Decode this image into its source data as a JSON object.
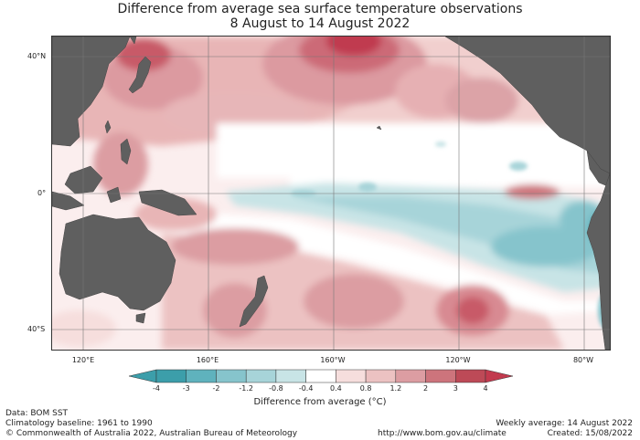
{
  "title": {
    "line1": "Difference from average sea surface temperature observations",
    "line2": "8 August to 14 August 2022"
  },
  "map": {
    "lat_labels": [
      "40°N",
      "0°",
      "40°S"
    ],
    "lon_labels": [
      "120°E",
      "160°E",
      "160°W",
      "120°W",
      "80°W"
    ],
    "land_color": "#5f5f5f",
    "grid_color": "#777777"
  },
  "colorbar": {
    "label": "Difference from average (°C)",
    "ticks": [
      "-4",
      "-3",
      "-2",
      "-1.2",
      "-0.8",
      "-0.4",
      "0.4",
      "0.8",
      "1.2",
      "2",
      "3",
      "4"
    ],
    "colors": [
      "#3c9eaa",
      "#5fb2bd",
      "#86c4cc",
      "#a7d4d9",
      "#c8e4e6",
      "#ffffff",
      "#f6dedd",
      "#ecc2c2",
      "#dc9da2",
      "#cd747c",
      "#bd4a57",
      "#c23a4e"
    ]
  },
  "footer": {
    "data_source": "Data: BOM SST",
    "baseline": "Climatology baseline: 1961 to 1990",
    "copyright": "© Commonwealth of Australia 2022, Australian Bureau of Meteorology",
    "weekly": "Weekly average: 14 August 2022",
    "url": "http://www.bom.gov.au/climate",
    "created": "Created: 15/08/2022"
  }
}
